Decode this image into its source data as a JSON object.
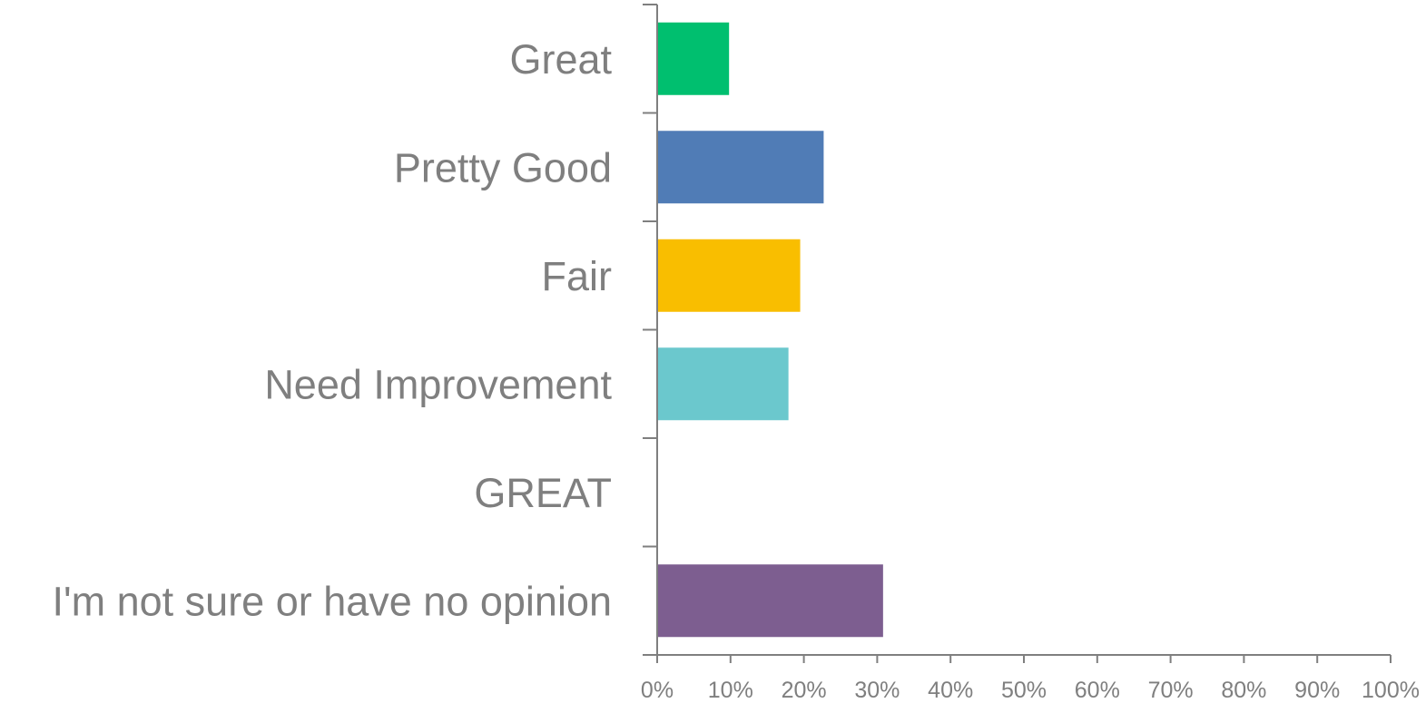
{
  "chart_data": {
    "type": "bar",
    "orientation": "horizontal",
    "categories": [
      "Great",
      "Pretty Good",
      "Fair",
      "Need Improvement",
      "GREAT",
      "I'm not sure or have no opinion"
    ],
    "values": [
      9.8,
      22.7,
      19.5,
      17.9,
      0,
      30.8
    ],
    "colors": [
      "#00bf6f",
      "#507cb6",
      "#f9be00",
      "#6bc8cd",
      "#b2b2b2",
      "#7d5e90"
    ],
    "xlim": [
      0,
      100
    ],
    "x_ticks": [
      "0%",
      "10%",
      "20%",
      "30%",
      "40%",
      "50%",
      "60%",
      "70%",
      "80%",
      "90%",
      "100%"
    ],
    "title": "",
    "xlabel": "",
    "ylabel": "",
    "grid": false,
    "legend": "none"
  }
}
